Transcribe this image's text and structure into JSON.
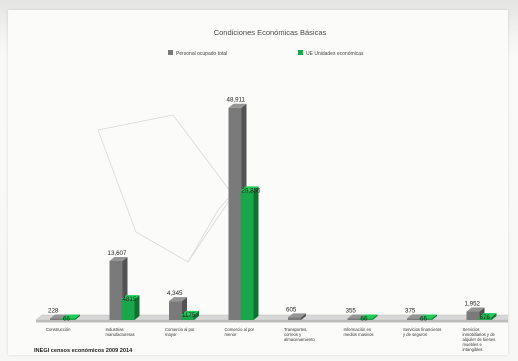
{
  "chart_data": {
    "type": "bar",
    "title": "Condiciones Económicas Básicas",
    "series": [
      {
        "name": "Personal ocupado total",
        "color": "#7a7a7a",
        "values": [
          228,
          13607,
          4345,
          48911,
          605,
          355,
          375,
          1952
        ],
        "labels": [
          "228",
          "13,607",
          "4,345",
          "48,911",
          "605",
          "355",
          "375",
          "1,952"
        ]
      },
      {
        "name": "UE Unidades económicas",
        "color": "#1aa64a",
        "values": [
          66,
          4815,
          1175,
          29856,
          0,
          66,
          66,
          676
        ],
        "labels": [
          "66",
          "4815",
          "1175",
          "29,856",
          "",
          "66",
          "66",
          "676"
        ]
      }
    ],
    "categories": [
      [
        "Construcción"
      ],
      [
        "Industrias",
        "manufactureras"
      ],
      [
        "Comercio al por",
        "mayor"
      ],
      [
        "Comercio al por",
        "menor"
      ],
      [
        "Transportes,",
        "correos y",
        "almacenamiento"
      ],
      [
        "Información en",
        "medios masivos"
      ],
      [
        "Servicios financieros",
        "y de seguros"
      ],
      [
        "Servicios",
        "inmobiliarios y de",
        "alquiler de bienes",
        "muebles e",
        "intangibles"
      ]
    ],
    "ylim": [
      0,
      50000
    ],
    "grid": false,
    "legend_position": "top"
  },
  "footer": {
    "source": "INEGI censos económicos 2009 2014"
  }
}
